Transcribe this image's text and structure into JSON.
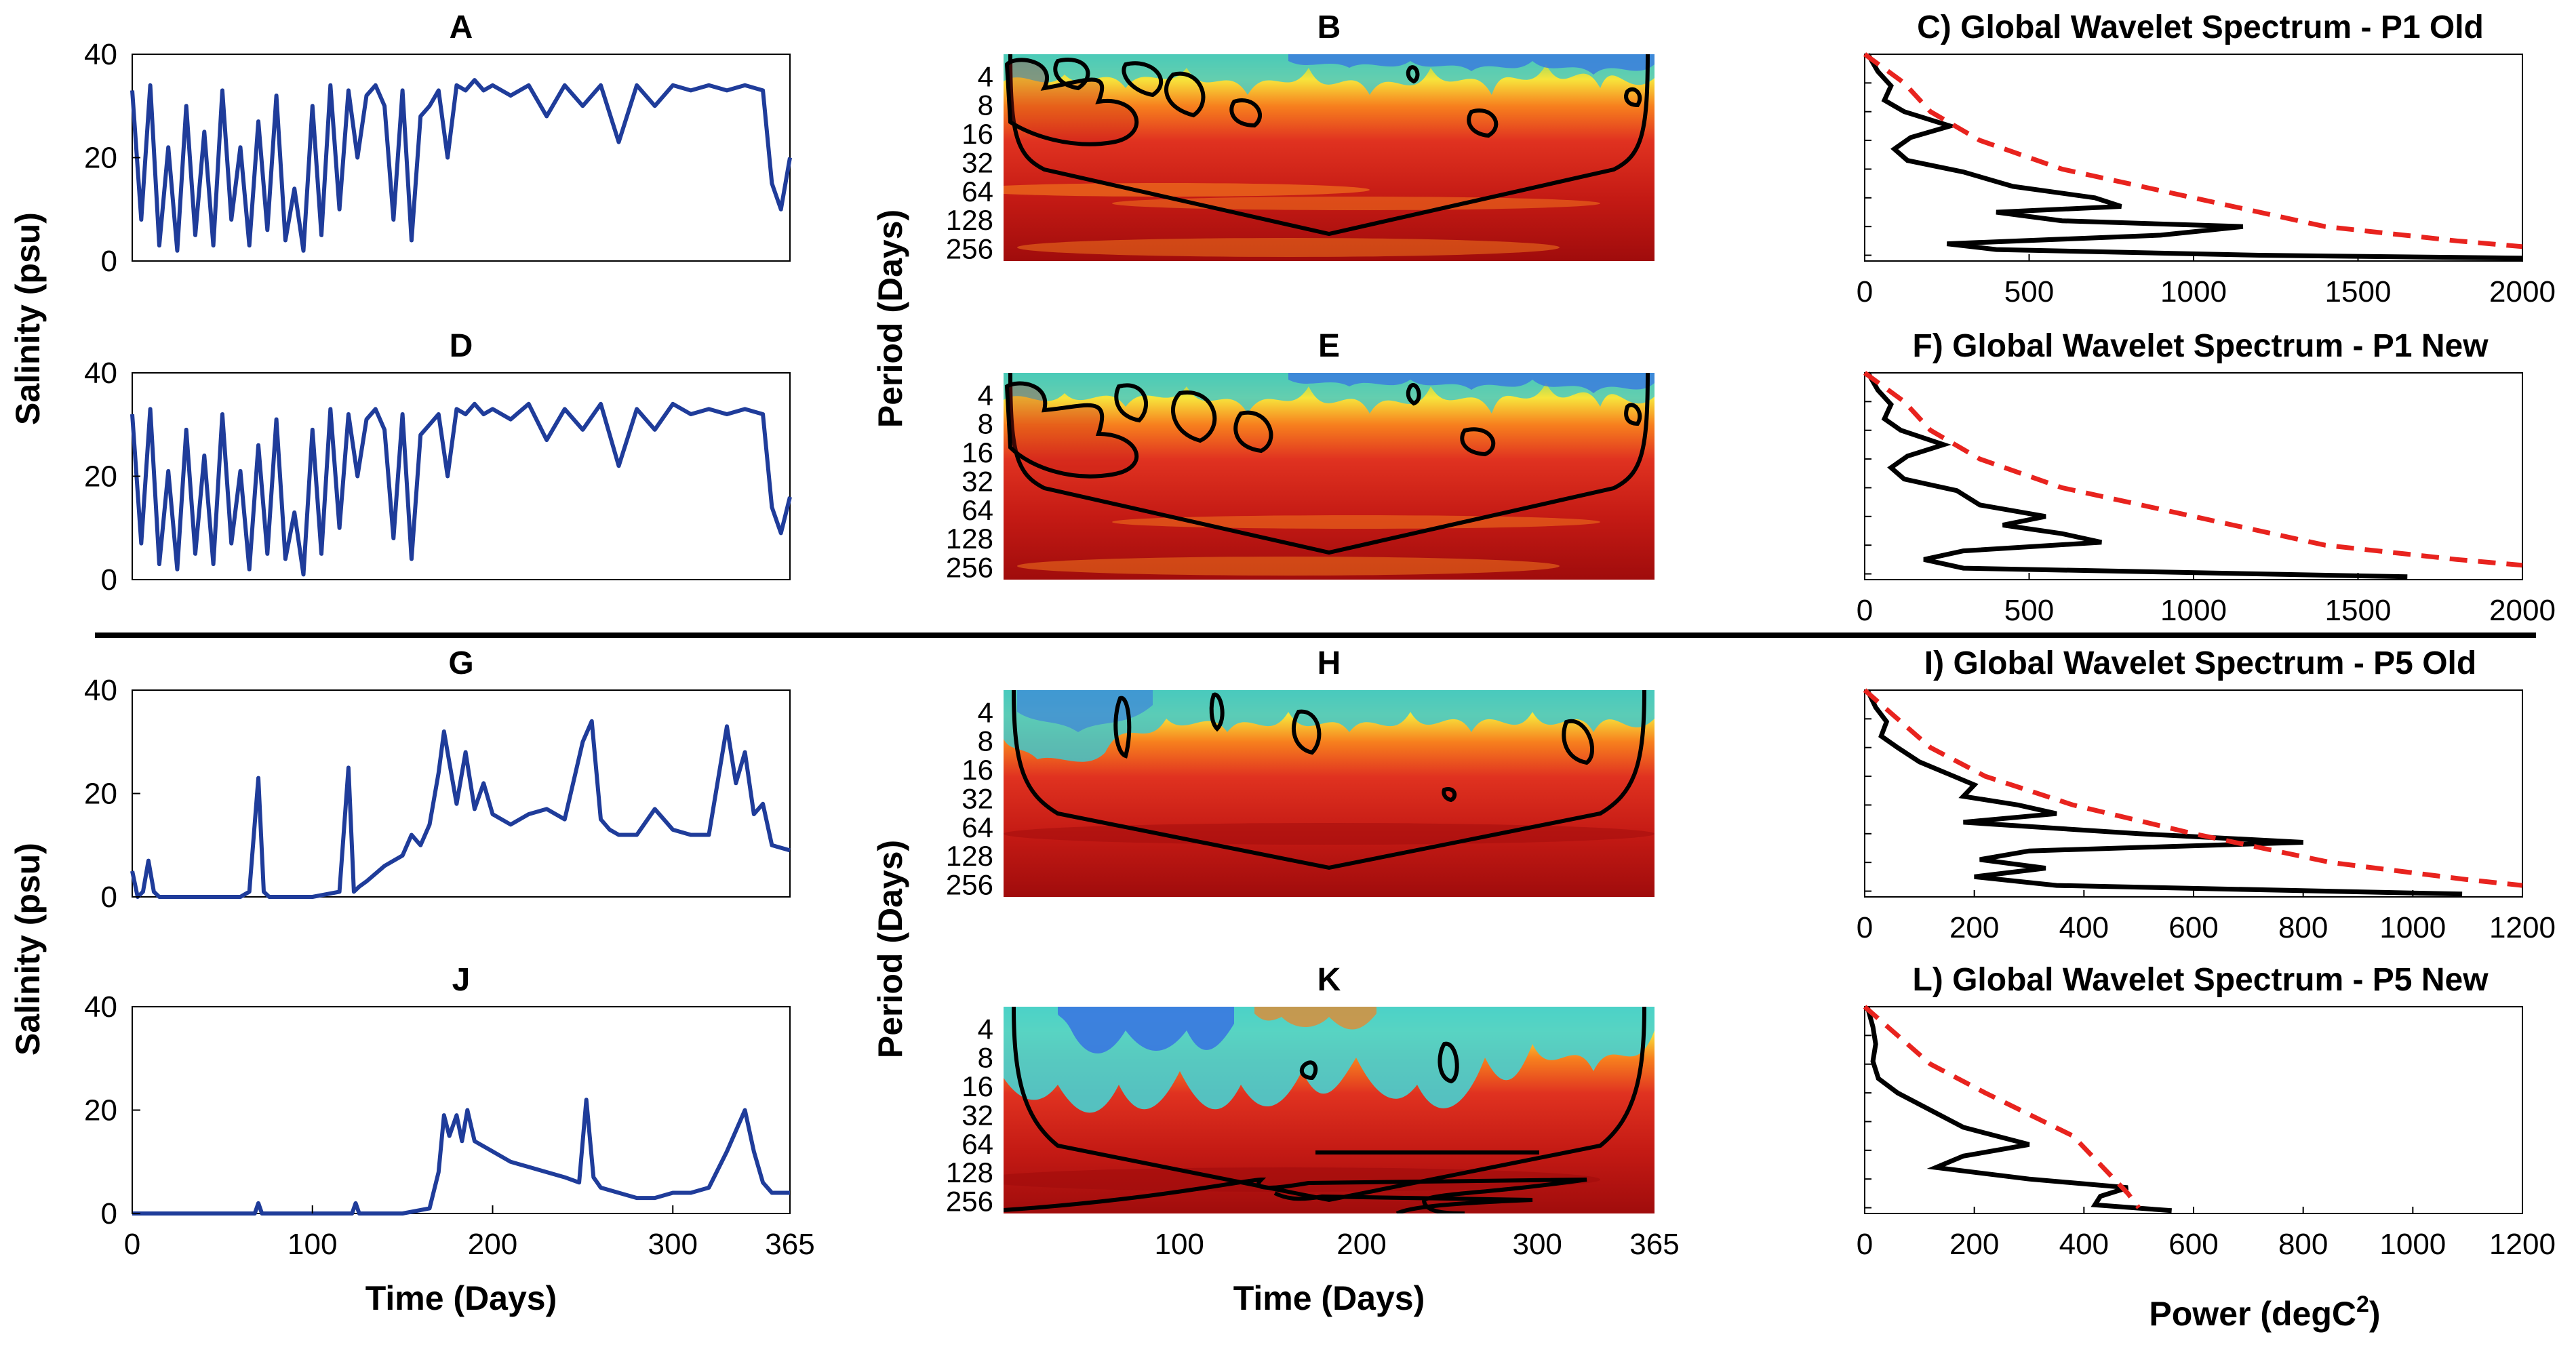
{
  "figure": {
    "divider": true,
    "colors": {
      "salinity_line": "#1f3c9a",
      "black_line": "#000000",
      "significance": "#e8231e",
      "wavelet_red": "#e03220",
      "wavelet_dark": "#a00c0c",
      "wavelet_orange": "#f7801e",
      "wavelet_yellow": "#f7e53c",
      "wavelet_green": "#7cd36a",
      "wavelet_cyan": "#46d2d2",
      "wavelet_blue": "#3a78e0"
    },
    "shared_labels": {
      "salinity_ylabel_top": "Salinity (psu)",
      "salinity_ylabel_bottom": "Salinity (psu)",
      "period_ylabel_top": "Period (Days)",
      "period_ylabel_bottom": "Period (Days)",
      "time_xlabel_left": "Time (Days)",
      "time_xlabel_mid": "Time (Days)",
      "power_xlabel_prefix": "Power (degC",
      "power_xlabel_sup": "2",
      "power_xlabel_suffix": ")"
    }
  },
  "chart_data": [
    {
      "id": "A",
      "type": "line",
      "title": "A",
      "xlabel": "",
      "ylabel": "Salinity (psu)",
      "xlim": [
        0,
        365
      ],
      "ylim": [
        0,
        40
      ],
      "yticks": [
        "0",
        "20",
        "40"
      ],
      "xticks": [],
      "description": "Salinity time series P1 Old; highly variable 0-35 psu",
      "x": [
        0,
        5,
        10,
        15,
        20,
        25,
        30,
        35,
        40,
        45,
        50,
        55,
        60,
        65,
        70,
        75,
        80,
        85,
        90,
        95,
        100,
        105,
        110,
        115,
        120,
        125,
        130,
        135,
        140,
        145,
        150,
        155,
        160,
        165,
        170,
        175,
        180,
        185,
        190,
        195,
        200,
        210,
        220,
        230,
        240,
        250,
        260,
        270,
        280,
        290,
        300,
        310,
        320,
        330,
        340,
        350,
        355,
        360,
        365
      ],
      "y": [
        33,
        8,
        34,
        3,
        22,
        2,
        30,
        5,
        25,
        3,
        33,
        8,
        22,
        3,
        27,
        6,
        32,
        4,
        14,
        2,
        30,
        5,
        34,
        10,
        33,
        20,
        32,
        34,
        30,
        8,
        33,
        4,
        28,
        30,
        33,
        20,
        34,
        33,
        35,
        33,
        34,
        32,
        34,
        28,
        34,
        30,
        34,
        23,
        34,
        30,
        34,
        33,
        34,
        33,
        34,
        33,
        15,
        10,
        20
      ]
    },
    {
      "id": "B",
      "type": "heatmap",
      "title": "B",
      "xlabel": "",
      "ylabel": "Period (Days)",
      "xlim": [
        0,
        365
      ],
      "yticks": [
        "4",
        "8",
        "16",
        "32",
        "64",
        "128",
        "256"
      ],
      "xticks": [],
      "description": "Wavelet power spectrum P1 Old"
    },
    {
      "id": "C",
      "type": "line",
      "title": "C) Global Wavelet Spectrum - P1 Old",
      "xlabel": "",
      "ylabel": "",
      "xlim": [
        0,
        2000
      ],
      "xticks": [
        "0",
        "500",
        "1000",
        "1500",
        "2000"
      ],
      "series": [
        {
          "name": "Global wavelet power",
          "power": [
            10,
            40,
            80,
            60,
            120,
            260,
            140,
            90,
            130,
            300,
            450,
            700,
            780,
            400,
            600,
            1150,
            900,
            250,
            400,
            1200,
            2000
          ],
          "log2_period": [
            1,
            1.6,
            2.1,
            2.6,
            3.0,
            3.5,
            3.9,
            4.3,
            4.7,
            5.1,
            5.6,
            6.0,
            6.3,
            6.5,
            6.8,
            7.0,
            7.3,
            7.6,
            7.8,
            8.0,
            8.1
          ]
        },
        {
          "name": "95% significance",
          "power": [
            0,
            120,
            200,
            350,
            600,
            1000,
            1400,
            1800,
            2000
          ],
          "log2_period": [
            1,
            2,
            3,
            4,
            5,
            6,
            7,
            7.5,
            7.7
          ]
        }
      ]
    },
    {
      "id": "D",
      "type": "line",
      "title": "D",
      "xlabel": "",
      "ylabel": "Salinity (psu)",
      "xlim": [
        0,
        365
      ],
      "ylim": [
        0,
        40
      ],
      "yticks": [
        "0",
        "20",
        "40"
      ],
      "xticks": [],
      "description": "Salinity time series P1 New",
      "x": [
        0,
        5,
        10,
        15,
        20,
        25,
        30,
        35,
        40,
        45,
        50,
        55,
        60,
        65,
        70,
        75,
        80,
        85,
        90,
        95,
        100,
        105,
        110,
        115,
        120,
        125,
        130,
        135,
        140,
        145,
        150,
        155,
        160,
        165,
        170,
        175,
        180,
        185,
        190,
        195,
        200,
        210,
        220,
        230,
        240,
        250,
        260,
        270,
        280,
        290,
        300,
        310,
        320,
        330,
        340,
        350,
        355,
        360,
        365
      ],
      "y": [
        32,
        7,
        33,
        3,
        21,
        2,
        29,
        5,
        24,
        3,
        32,
        7,
        21,
        2,
        26,
        5,
        31,
        4,
        13,
        1,
        29,
        5,
        33,
        10,
        32,
        20,
        31,
        33,
        29,
        8,
        32,
        4,
        28,
        30,
        32,
        20,
        33,
        32,
        34,
        32,
        33,
        31,
        34,
        27,
        33,
        29,
        34,
        22,
        33,
        29,
        34,
        32,
        33,
        32,
        33,
        32,
        14,
        9,
        16
      ]
    },
    {
      "id": "E",
      "type": "heatmap",
      "title": "E",
      "xlabel": "",
      "ylabel": "Period (Days)",
      "xlim": [
        0,
        365
      ],
      "yticks": [
        "4",
        "8",
        "16",
        "32",
        "64",
        "128",
        "256"
      ],
      "xticks": [],
      "description": "Wavelet power spectrum P1 New"
    },
    {
      "id": "F",
      "type": "line",
      "title": "F) Global Wavelet Spectrum - P1 New",
      "xlabel": "",
      "ylabel": "",
      "xlim": [
        0,
        2000
      ],
      "xticks": [
        "0",
        "500",
        "1000",
        "1500",
        "2000"
      ],
      "series": [
        {
          "name": "Global wavelet power",
          "power": [
            10,
            40,
            80,
            60,
            110,
            240,
            130,
            80,
            120,
            280,
            350,
            550,
            420,
            600,
            720,
            300,
            180,
            300,
            1650
          ],
          "log2_period": [
            1,
            1.6,
            2.1,
            2.6,
            3.0,
            3.5,
            3.9,
            4.3,
            4.7,
            5.1,
            5.6,
            6.0,
            6.3,
            6.6,
            6.9,
            7.2,
            7.5,
            7.8,
            8.1
          ]
        },
        {
          "name": "95% significance",
          "power": [
            0,
            120,
            200,
            350,
            600,
            1000,
            1400,
            1800,
            2000
          ],
          "log2_period": [
            1,
            2,
            3,
            4,
            5,
            6,
            7,
            7.5,
            7.7
          ]
        }
      ]
    },
    {
      "id": "G",
      "type": "line",
      "title": "G",
      "xlabel": "",
      "ylabel": "Salinity (psu)",
      "xlim": [
        0,
        365
      ],
      "ylim": [
        0,
        40
      ],
      "yticks": [
        "0",
        "20",
        "40"
      ],
      "xticks": [],
      "description": "Salinity time series P5 Old",
      "x": [
        0,
        3,
        6,
        9,
        12,
        15,
        20,
        40,
        60,
        65,
        70,
        73,
        76,
        80,
        100,
        115,
        120,
        123,
        126,
        130,
        140,
        150,
        155,
        160,
        165,
        170,
        173,
        176,
        180,
        185,
        190,
        195,
        200,
        210,
        220,
        230,
        240,
        250,
        255,
        260,
        265,
        270,
        280,
        290,
        300,
        310,
        320,
        330,
        335,
        340,
        345,
        350,
        355,
        365
      ],
      "y": [
        5,
        0,
        1,
        7,
        1,
        0,
        0,
        0,
        0,
        1,
        23,
        1,
        0,
        0,
        0,
        1,
        25,
        1,
        2,
        3,
        6,
        8,
        12,
        10,
        14,
        24,
        32,
        26,
        18,
        28,
        17,
        22,
        16,
        14,
        16,
        17,
        15,
        30,
        34,
        15,
        13,
        12,
        12,
        17,
        13,
        12,
        12,
        33,
        22,
        28,
        16,
        18,
        10,
        9
      ]
    },
    {
      "id": "H",
      "type": "heatmap",
      "title": "H",
      "xlabel": "",
      "ylabel": "Period (Days)",
      "xlim": [
        0,
        365
      ],
      "yticks": [
        "4",
        "8",
        "16",
        "32",
        "64",
        "128",
        "256"
      ],
      "xticks": [],
      "description": "Wavelet power spectrum P5 Old"
    },
    {
      "id": "I",
      "type": "line",
      "title": "I) Global Wavelet Spectrum - P5 Old",
      "xlabel": "",
      "ylabel": "",
      "xlim": [
        0,
        1200
      ],
      "xticks": [
        "0",
        "200",
        "400",
        "600",
        "800",
        "1000",
        "1200"
      ],
      "series": [
        {
          "name": "Global wavelet power",
          "power": [
            5,
            20,
            40,
            30,
            60,
            100,
            150,
            200,
            180,
            280,
            350,
            180,
            500,
            800,
            300,
            210,
            330,
            200,
            350,
            1090
          ],
          "log2_period": [
            1,
            1.6,
            2.1,
            2.6,
            3.0,
            3.5,
            3.9,
            4.3,
            4.7,
            5.0,
            5.3,
            5.6,
            6.0,
            6.3,
            6.6,
            6.9,
            7.2,
            7.5,
            7.8,
            8.1
          ]
        },
        {
          "name": "95% significance",
          "power": [
            0,
            60,
            120,
            220,
            380,
            600,
            850,
            1100,
            1200
          ],
          "log2_period": [
            1,
            2,
            3,
            4,
            5,
            6,
            7,
            7.6,
            7.8
          ]
        }
      ]
    },
    {
      "id": "J",
      "type": "line",
      "title": "J",
      "xlabel": "Time (Days)",
      "ylabel": "Salinity (psu)",
      "xlim": [
        0,
        365
      ],
      "ylim": [
        0,
        40
      ],
      "yticks": [
        "0",
        "20",
        "40"
      ],
      "xticks": [
        "0",
        "100",
        "200",
        "300",
        "365"
      ],
      "description": "Salinity time series P5 New",
      "x": [
        0,
        40,
        68,
        70,
        72,
        100,
        122,
        124,
        126,
        150,
        165,
        170,
        173,
        176,
        180,
        183,
        186,
        190,
        200,
        210,
        220,
        230,
        240,
        248,
        252,
        256,
        260,
        270,
        280,
        290,
        300,
        310,
        320,
        330,
        335,
        340,
        345,
        350,
        355,
        365
      ],
      "y": [
        0,
        0,
        0,
        2,
        0,
        0,
        0,
        2,
        0,
        0,
        1,
        8,
        19,
        15,
        19,
        14,
        20,
        14,
        12,
        10,
        9,
        8,
        7,
        6,
        22,
        7,
        5,
        4,
        3,
        3,
        4,
        4,
        5,
        12,
        16,
        20,
        12,
        6,
        4,
        4
      ]
    },
    {
      "id": "K",
      "type": "heatmap",
      "title": "K",
      "xlabel": "Time (Days)",
      "ylabel": "Period (Days)",
      "xlim": [
        0,
        365
      ],
      "yticks": [
        "4",
        "8",
        "16",
        "32",
        "64",
        "128",
        "256"
      ],
      "xticks": [
        "100",
        "200",
        "300",
        "365"
      ],
      "description": "Wavelet power spectrum P5 New"
    },
    {
      "id": "L",
      "type": "line",
      "title": "L) Global Wavelet Spectrum - P5 New",
      "xlabel": "Power (degC2)",
      "ylabel": "",
      "xlim": [
        0,
        1200
      ],
      "xticks": [
        "0",
        "200",
        "400",
        "600",
        "800",
        "1000",
        "1200"
      ],
      "series": [
        {
          "name": "Global wavelet power",
          "power": [
            5,
            15,
            20,
            15,
            25,
            60,
            120,
            180,
            300,
            180,
            130,
            300,
            480,
            430,
            420,
            560
          ],
          "log2_period": [
            1,
            1.7,
            2.3,
            2.9,
            3.5,
            4.0,
            4.6,
            5.2,
            5.8,
            6.2,
            6.6,
            7.0,
            7.3,
            7.6,
            7.9,
            8.1
          ]
        },
        {
          "name": "95% significance",
          "power": [
            0,
            60,
            120,
            220,
            380,
            480,
            500
          ],
          "log2_period": [
            1,
            2,
            3,
            4,
            5.5,
            7.5,
            8
          ]
        }
      ]
    }
  ]
}
